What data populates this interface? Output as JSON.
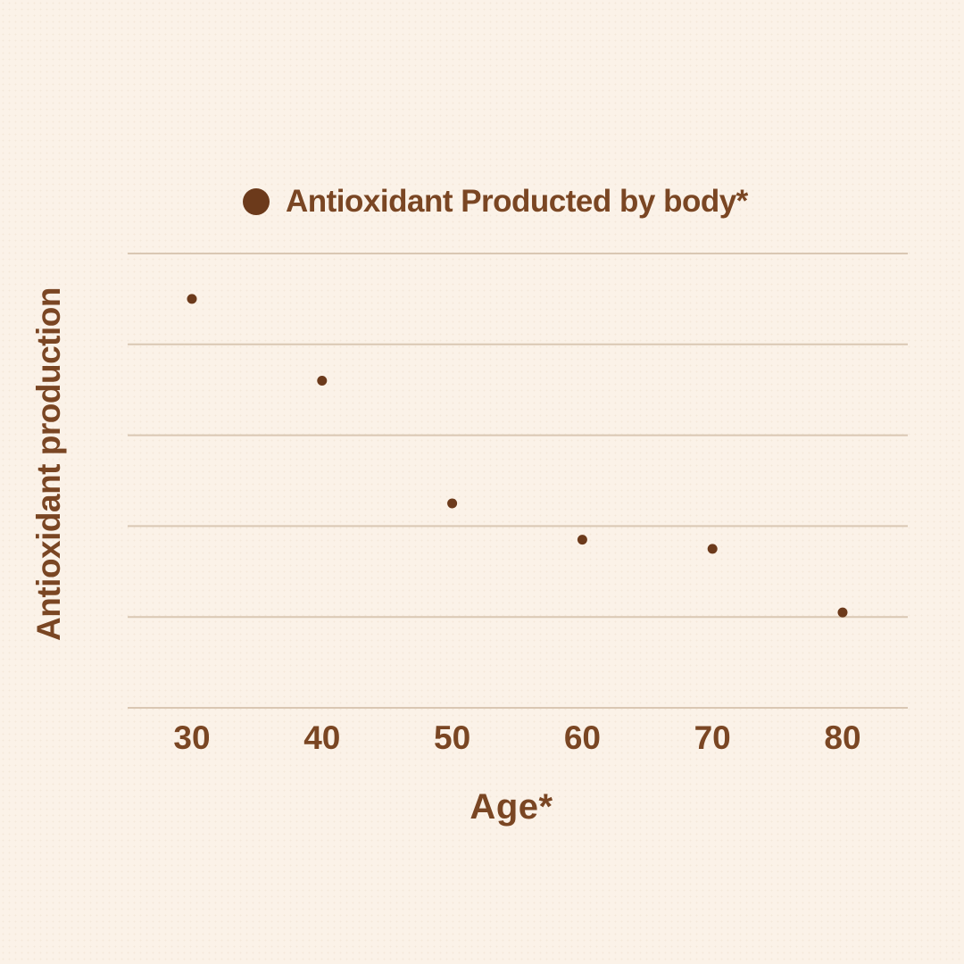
{
  "colors": {
    "background": "#fbf2e8",
    "text": "#7a4623",
    "marker": "#6c3a1b",
    "gridline": "#d9c7b3"
  },
  "legend": {
    "marker_icon": "filled-circle",
    "label": "Antioxidant Producted by body*"
  },
  "chart_data": {
    "type": "scatter",
    "title": "",
    "xlabel": "Age*",
    "ylabel": "Antioxidant production",
    "x": [
      30,
      40,
      50,
      60,
      70,
      80
    ],
    "categories": [
      "30",
      "40",
      "50",
      "60",
      "70",
      "80"
    ],
    "series": [
      {
        "name": "Antioxidant Producted by body*",
        "values": [
          90,
          72,
          45,
          37,
          35,
          21
        ]
      }
    ],
    "ylim": [
      0,
      100
    ],
    "y_gridline_step": 20,
    "y_tick_labels_visible": false,
    "grid": "horizontal-only",
    "legend_position": "top"
  }
}
